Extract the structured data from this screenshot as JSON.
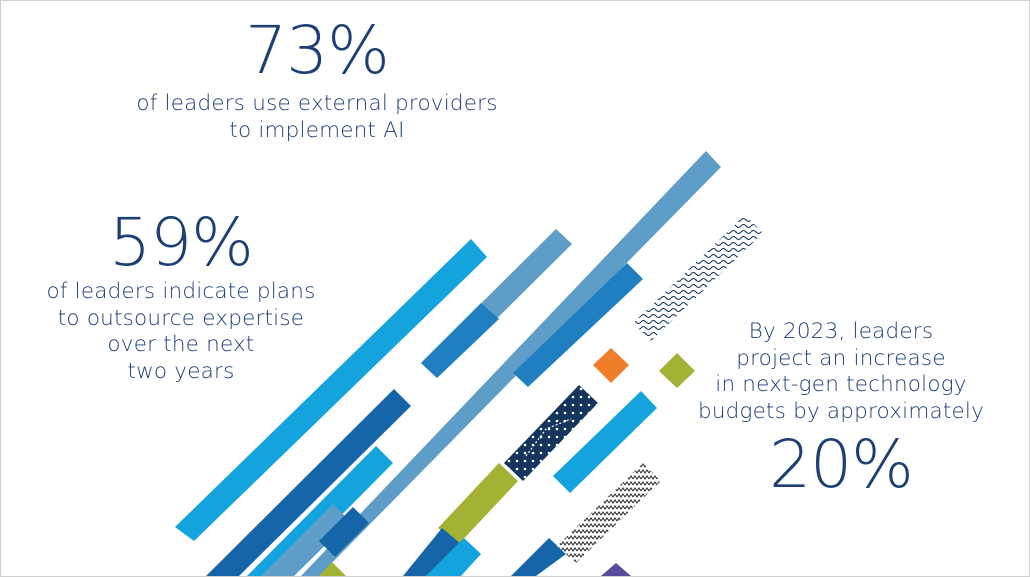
{
  "stats": [
    {
      "value": "73%",
      "description": [
        "of leaders use external providers",
        "to implement AI"
      ]
    },
    {
      "value": "59%",
      "description": [
        "of leaders indicate plans",
        "to outsource expertise",
        "over the next",
        "two years"
      ]
    },
    {
      "value": "20%",
      "description": [
        "By 2023, leaders",
        "project an increase",
        "in next-gen technology",
        "budgets by approximately"
      ]
    }
  ],
  "colors": {
    "text": "#1e3f73",
    "bar_light": "#14a3dc",
    "bar_steel": "#5d9dc8",
    "bar_mid": "#1f7fc1",
    "bar_dark": "#1565a8",
    "navy": "#14355e",
    "green": "#a3b234",
    "orange": "#ef7d2a",
    "purple": "#5a4b9d"
  }
}
